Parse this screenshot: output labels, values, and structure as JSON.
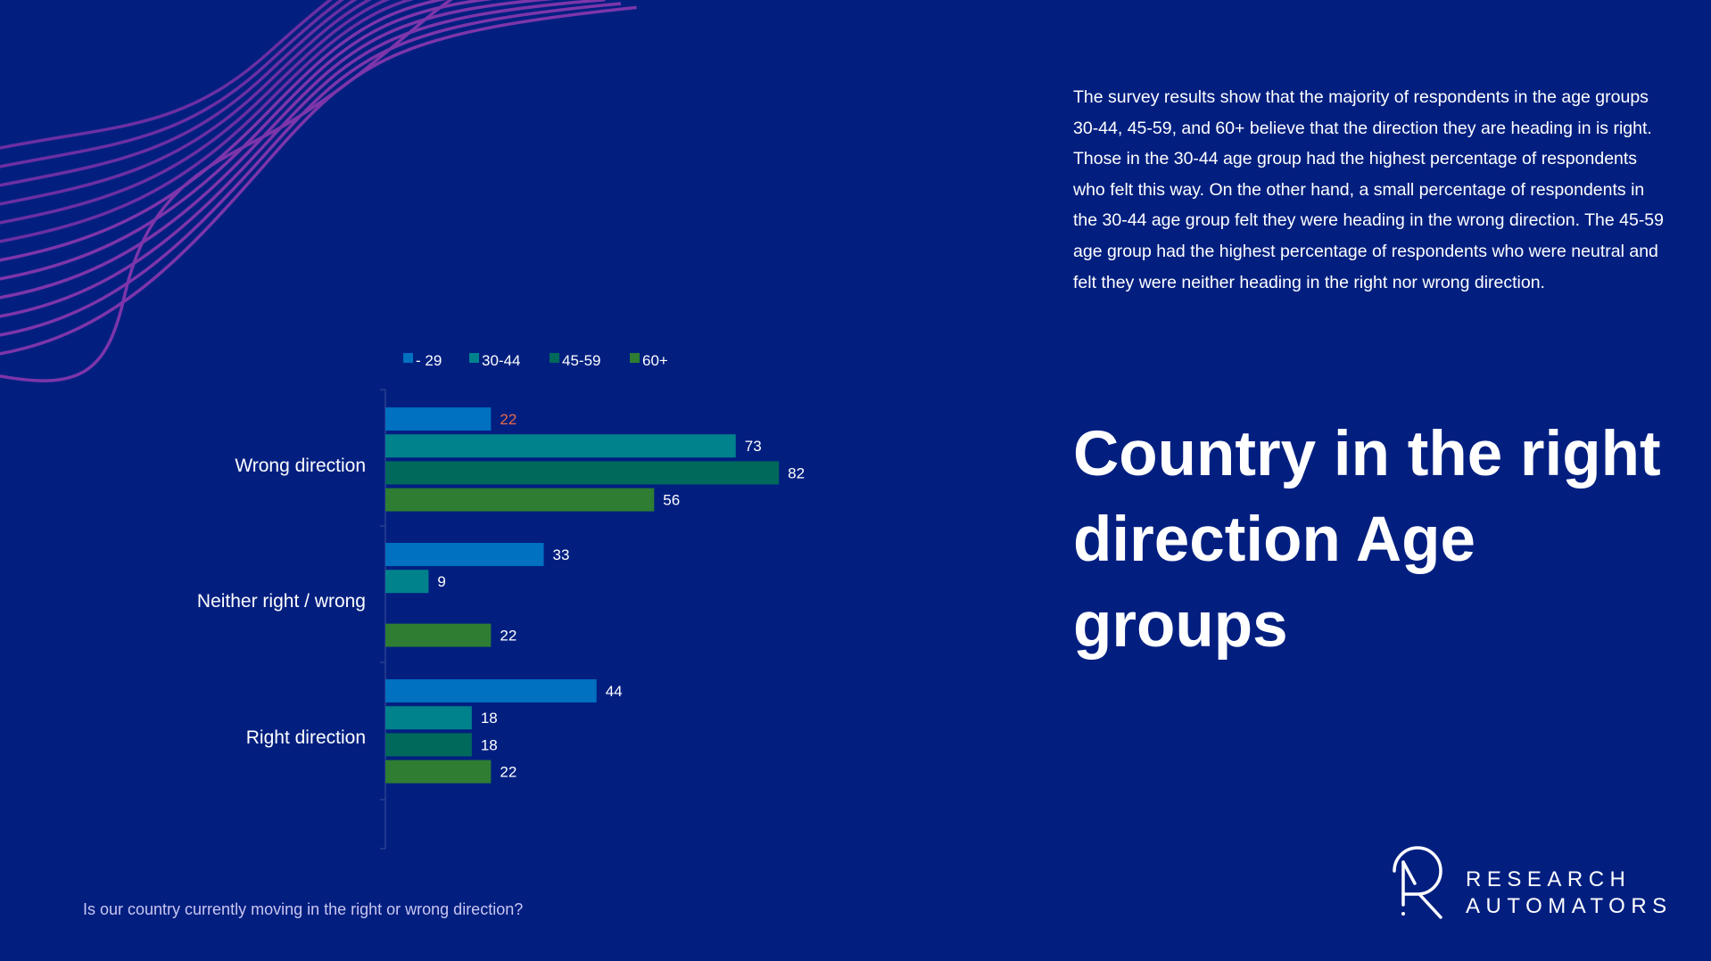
{
  "summary": "The survey results show that the majority of respondents in the age groups 30-44, 45-59, and 60+ believe that the direction they are heading in is right. Those in the 30-44 age group had the highest percentage of respondents who felt this way. On the other hand, a small percentage of respondents in the 30-44 age group felt they were heading in the wrong direction. The 45-59 age group had the highest percentage of respondents who were neutral and felt they were neither heading in the right nor wrong direction.",
  "title": "Country in the right direction Age groups",
  "question": "Is our country currently moving in the right or wrong direction?",
  "logo": {
    "line1": "RESEARCH",
    "line2": "AUTOMATORS"
  },
  "chart_data": {
    "type": "bar",
    "orientation": "horizontal",
    "categories": [
      "Wrong direction",
      "Neither right / wrong",
      "Right direction"
    ],
    "series": [
      {
        "name": "- 29",
        "color": "#0070c0",
        "values": [
          22,
          33,
          44
        ]
      },
      {
        "name": "30-44",
        "color": "#00828c",
        "values": [
          73,
          9,
          18
        ]
      },
      {
        "name": "45-59",
        "color": "#00695c",
        "values": [
          82,
          null,
          18
        ]
      },
      {
        "name": "60+",
        "color": "#2e7d32",
        "values": [
          56,
          22,
          22
        ]
      }
    ],
    "highlight_label_color": "#e86a4a",
    "legend": "top",
    "grid": false,
    "xlim": [
      0,
      100
    ]
  }
}
